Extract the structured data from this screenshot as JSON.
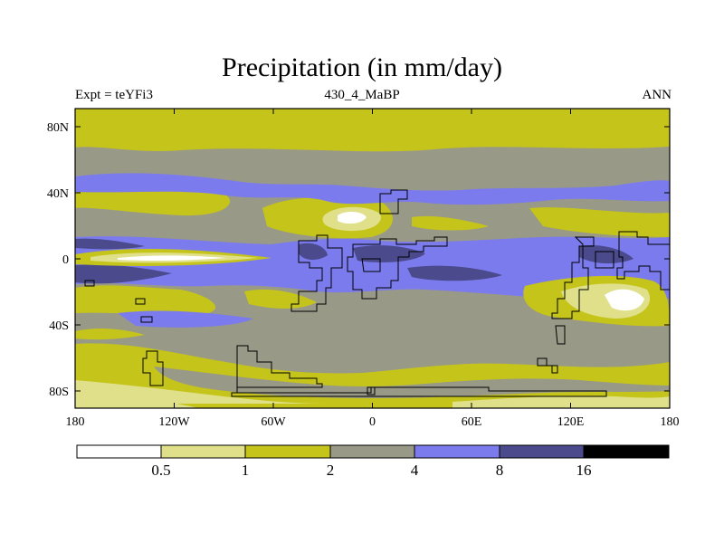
{
  "title": "Precipitation (in mm/day)",
  "subtitle_left": "Expt = teYFi3",
  "subtitle_center": "430_4_MaBP",
  "subtitle_right": "ANN",
  "lat_labels": [
    "80N",
    "40N",
    "0",
    "40S",
    "80S"
  ],
  "lon_labels": [
    "180",
    "120W",
    "60W",
    "0",
    "60E",
    "120E",
    "180"
  ],
  "colorbar": {
    "colors": [
      "#ffffff",
      "#e0e08a",
      "#c4c41a",
      "#999988",
      "#7b7bee",
      "#4a4a8c",
      "#000000"
    ],
    "labels": [
      "0.5",
      "1",
      "2",
      "4",
      "8",
      "16"
    ]
  }
}
